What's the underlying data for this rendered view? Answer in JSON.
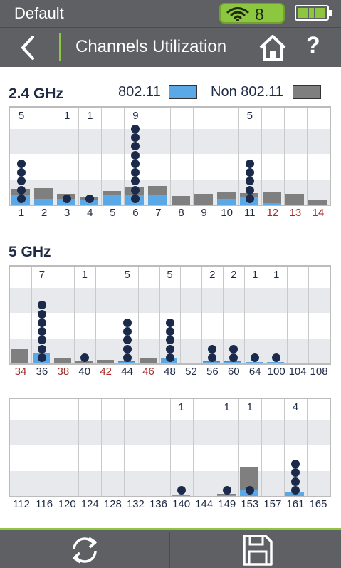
{
  "status": {
    "title": "Default",
    "wifi_count": "8",
    "battery_cells": 5
  },
  "nav": {
    "title": "Channels Utilization",
    "back_icon": "chevron-left-icon",
    "home_icon": "home-icon",
    "help_label": "?"
  },
  "legend": {
    "wifi_label": "802.11",
    "non_label": "Non 802.11",
    "wifi_color": "#5aa9e6",
    "non_color": "#7f7f7f"
  },
  "colors": {
    "normal_channel": "#1f2a44",
    "non_standard_channel": "#a32b2b"
  },
  "chart_data": [
    {
      "type": "bar",
      "title": "2.4 GHz",
      "ylim": [
        0,
        100
      ],
      "channels": [
        {
          "label": "1",
          "count": "5",
          "ap_dots": 5,
          "wifi": 12,
          "non": 21,
          "alt": false
        },
        {
          "label": "2",
          "count": "",
          "ap_dots": 0,
          "wifi": 8,
          "non": 22,
          "alt": false
        },
        {
          "label": "3",
          "count": "1",
          "ap_dots": 1,
          "wifi": 8,
          "non": 14,
          "alt": false
        },
        {
          "label": "4",
          "count": "1",
          "ap_dots": 1,
          "wifi": 6,
          "non": 10,
          "alt": false
        },
        {
          "label": "5",
          "count": "",
          "ap_dots": 0,
          "wifi": 12,
          "non": 18,
          "alt": false
        },
        {
          "label": "6",
          "count": "9",
          "ap_dots": 9,
          "wifi": 13,
          "non": 23,
          "alt": false
        },
        {
          "label": "7",
          "count": "",
          "ap_dots": 0,
          "wifi": 12,
          "non": 25,
          "alt": false
        },
        {
          "label": "8",
          "count": "",
          "ap_dots": 0,
          "wifi": 0,
          "non": 11,
          "alt": false
        },
        {
          "label": "9",
          "count": "",
          "ap_dots": 0,
          "wifi": 0,
          "non": 14,
          "alt": false
        },
        {
          "label": "10",
          "count": "",
          "ap_dots": 0,
          "wifi": 8,
          "non": 16,
          "alt": false
        },
        {
          "label": "11",
          "count": "5",
          "ap_dots": 5,
          "wifi": 9,
          "non": 15,
          "alt": false
        },
        {
          "label": "12",
          "count": "",
          "ap_dots": 0,
          "wifi": 2,
          "non": 16,
          "alt": true
        },
        {
          "label": "13",
          "count": "",
          "ap_dots": 0,
          "wifi": 0,
          "non": 14,
          "alt": true
        },
        {
          "label": "14",
          "count": "",
          "ap_dots": 0,
          "wifi": 0,
          "non": 6,
          "alt": true
        }
      ]
    },
    {
      "type": "bar",
      "title": "5 GHz",
      "ylim": [
        0,
        100
      ],
      "channels": [
        {
          "label": "34",
          "count": "",
          "ap_dots": 0,
          "wifi": 0,
          "non": 19,
          "alt": true
        },
        {
          "label": "36",
          "count": "7",
          "ap_dots": 7,
          "wifi": 13,
          "non": 13,
          "alt": false
        },
        {
          "label": "38",
          "count": "",
          "ap_dots": 0,
          "wifi": 0,
          "non": 8,
          "alt": true
        },
        {
          "label": "40",
          "count": "1",
          "ap_dots": 1,
          "wifi": 1,
          "non": 3,
          "alt": false
        },
        {
          "label": "42",
          "count": "",
          "ap_dots": 0,
          "wifi": 0,
          "non": 5,
          "alt": true
        },
        {
          "label": "44",
          "count": "5",
          "ap_dots": 5,
          "wifi": 2,
          "non": 4,
          "alt": false
        },
        {
          "label": "46",
          "count": "",
          "ap_dots": 0,
          "wifi": 0,
          "non": 8,
          "alt": true
        },
        {
          "label": "48",
          "count": "5",
          "ap_dots": 5,
          "wifi": 8,
          "non": 8,
          "alt": false
        },
        {
          "label": "52",
          "count": "",
          "ap_dots": 0,
          "wifi": 0,
          "non": 0,
          "alt": false
        },
        {
          "label": "56",
          "count": "2",
          "ap_dots": 2,
          "wifi": 2,
          "non": 3,
          "alt": false
        },
        {
          "label": "60",
          "count": "2",
          "ap_dots": 2,
          "wifi": 2,
          "non": 3,
          "alt": false
        },
        {
          "label": "64",
          "count": "1",
          "ap_dots": 1,
          "wifi": 2,
          "non": 2,
          "alt": false
        },
        {
          "label": "100",
          "count": "1",
          "ap_dots": 1,
          "wifi": 2,
          "non": 2,
          "alt": false
        },
        {
          "label": "104",
          "count": "",
          "ap_dots": 0,
          "wifi": 0,
          "non": 0,
          "alt": false
        },
        {
          "label": "108",
          "count": "",
          "ap_dots": 0,
          "wifi": 0,
          "non": 0,
          "alt": false
        }
      ]
    },
    {
      "type": "bar",
      "title": "",
      "ylim": [
        0,
        100
      ],
      "channels": [
        {
          "label": "112",
          "count": "",
          "ap_dots": 0,
          "wifi": 0,
          "non": 0,
          "alt": false
        },
        {
          "label": "116",
          "count": "",
          "ap_dots": 0,
          "wifi": 0,
          "non": 0,
          "alt": false
        },
        {
          "label": "120",
          "count": "",
          "ap_dots": 0,
          "wifi": 0,
          "non": 0,
          "alt": false
        },
        {
          "label": "124",
          "count": "",
          "ap_dots": 0,
          "wifi": 0,
          "non": 0,
          "alt": false
        },
        {
          "label": "128",
          "count": "",
          "ap_dots": 0,
          "wifi": 0,
          "non": 0,
          "alt": false
        },
        {
          "label": "132",
          "count": "",
          "ap_dots": 0,
          "wifi": 0,
          "non": 0,
          "alt": false
        },
        {
          "label": "136",
          "count": "",
          "ap_dots": 0,
          "wifi": 0,
          "non": 0,
          "alt": false
        },
        {
          "label": "140",
          "count": "1",
          "ap_dots": 1,
          "wifi": 2,
          "non": 2,
          "alt": false
        },
        {
          "label": "144",
          "count": "",
          "ap_dots": 0,
          "wifi": 0,
          "non": 0,
          "alt": false
        },
        {
          "label": "149",
          "count": "1",
          "ap_dots": 1,
          "wifi": 1,
          "non": 3,
          "alt": false
        },
        {
          "label": "153",
          "count": "1",
          "ap_dots": 1,
          "wifi": 8,
          "non": 39,
          "alt": false
        },
        {
          "label": "157",
          "count": "",
          "ap_dots": 0,
          "wifi": 0,
          "non": 0,
          "alt": false
        },
        {
          "label": "161",
          "count": "4",
          "ap_dots": 4,
          "wifi": 6,
          "non": 6,
          "alt": false
        },
        {
          "label": "165",
          "count": "",
          "ap_dots": 0,
          "wifi": 0,
          "non": 0,
          "alt": false
        }
      ]
    }
  ],
  "toolbar": {
    "refresh_icon": "refresh-icon",
    "save_icon": "save-icon"
  }
}
